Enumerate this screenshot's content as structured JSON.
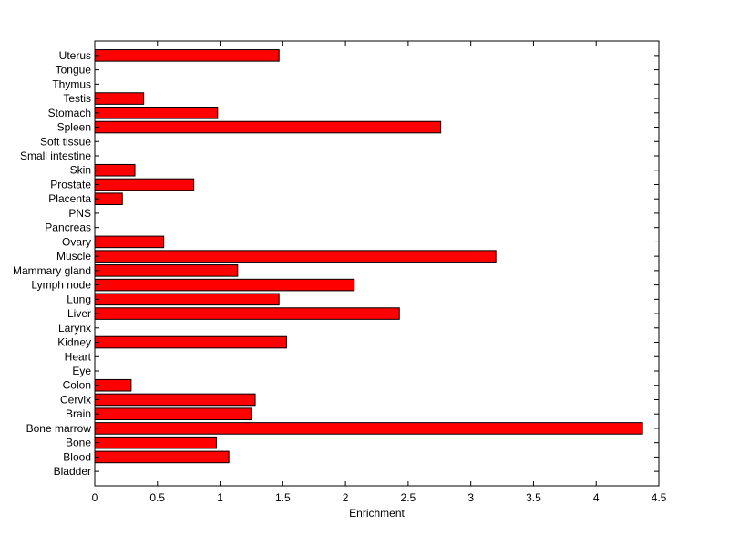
{
  "chart_data": {
    "type": "bar",
    "orientation": "horizontal",
    "title": "",
    "xlabel": "Enrichment",
    "ylabel": "",
    "xlim": [
      0,
      4.5
    ],
    "x_ticks": [
      0,
      0.5,
      1,
      1.5,
      2,
      2.5,
      3,
      3.5,
      4,
      4.5
    ],
    "x_tick_labels": [
      "0",
      "0.5",
      "1",
      "1.5",
      "2",
      "2.5",
      "3",
      "3.5",
      "4",
      "4.5"
    ],
    "grid": false,
    "legend": "none",
    "bar_color": "#ff0000",
    "bar_edge_color": "#000000",
    "categories": [
      "Bladder",
      "Blood",
      "Bone",
      "Bone marrow",
      "Brain",
      "Cervix",
      "Colon",
      "Eye",
      "Heart",
      "Kidney",
      "Larynx",
      "Liver",
      "Lung",
      "Lymph node",
      "Mammary gland",
      "Muscle",
      "Ovary",
      "Pancreas",
      "PNS",
      "Placenta",
      "Prostate",
      "Skin",
      "Small intestine",
      "Soft tissue",
      "Spleen",
      "Stomach",
      "Testis",
      "Thymus",
      "Tongue",
      "Uterus"
    ],
    "values": [
      0,
      1.07,
      0.97,
      4.37,
      1.25,
      1.28,
      0.29,
      0,
      0,
      1.53,
      0,
      2.43,
      1.47,
      2.07,
      1.14,
      3.2,
      0.55,
      0,
      0,
      0.22,
      0.79,
      0.32,
      0,
      0,
      2.76,
      0.98,
      0.39,
      0,
      0,
      1.47
    ]
  }
}
